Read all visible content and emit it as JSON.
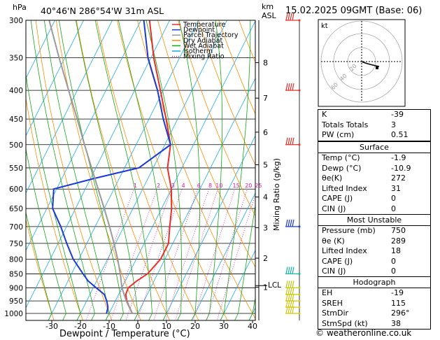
{
  "header": {
    "units_left": "hPa",
    "location": "40°46'N  286°54'W  31m  ASL",
    "units_km": "km",
    "units_asl": "ASL",
    "datetime": "15.02.2025  09GMT  (Base: 06)"
  },
  "chart_data": {
    "type": "skew-t log-p",
    "xlabel": "Dewpoint / Temperature (°C)",
    "ylabel_right": "Mixing Ratio (g/kg)",
    "pressure_ticks": [
      "300",
      "350",
      "400",
      "450",
      "500",
      "550",
      "600",
      "650",
      "700",
      "750",
      "800",
      "850",
      "900",
      "950",
      "1000"
    ],
    "pressure_values": [
      300,
      350,
      400,
      450,
      500,
      550,
      600,
      650,
      700,
      750,
      800,
      850,
      900,
      950,
      1000
    ],
    "temp_ticks": [
      "-30",
      "-20",
      "-10",
      "0",
      "10",
      "20",
      "30",
      "40"
    ],
    "temp_values": [
      -30,
      -20,
      -10,
      0,
      10,
      20,
      30,
      40
    ],
    "xlim": [
      -40,
      40
    ],
    "ylim": [
      1050,
      300
    ],
    "km_ticks": [
      {
        "label": "8",
        "p": 357
      },
      {
        "label": "7",
        "p": 413
      },
      {
        "label": "6",
        "p": 475
      },
      {
        "label": "5",
        "p": 543
      },
      {
        "label": "4",
        "p": 620
      },
      {
        "label": "3",
        "p": 703
      },
      {
        "label": "2",
        "p": 797
      },
      {
        "label": "1",
        "p": 898
      }
    ],
    "lcl": {
      "label": "LCL",
      "p": 892
    },
    "mixing_ratio_labels": [
      {
        "label": "1",
        "w": 1
      },
      {
        "label": "2",
        "w": 2
      },
      {
        "label": "3",
        "w": 3
      },
      {
        "label": "4",
        "w": 4
      },
      {
        "label": "6",
        "w": 6
      },
      {
        "label": "8",
        "w": 8
      },
      {
        "label": "10",
        "w": 10
      },
      {
        "label": "15",
        "w": 15
      },
      {
        "label": "20",
        "w": 20
      },
      {
        "label": "25",
        "w": 25
      }
    ],
    "legend": [
      {
        "name": "Temperature",
        "color": "#e8302a"
      },
      {
        "name": "Dewpoint",
        "color": "#1c39d8"
      },
      {
        "name": "Parcel Trajectory",
        "color": "#999999"
      },
      {
        "name": "Dry Adiabat",
        "color": "#ff8c00"
      },
      {
        "name": "Wet Adiabat",
        "color": "#13a813"
      },
      {
        "name": "Isotherm",
        "color": "#18a7e0"
      },
      {
        "name": "Mixing Ratio",
        "color": "#d51aa3"
      }
    ],
    "series": [
      {
        "name": "Temperature",
        "color": "#e8302a",
        "points": [
          [
            1000,
            -1.9
          ],
          [
            975,
            -4
          ],
          [
            950,
            -6
          ],
          [
            925,
            -7.5
          ],
          [
            900,
            -7.8
          ],
          [
            875,
            -6
          ],
          [
            850,
            -3.5
          ],
          [
            800,
            -1.5
          ],
          [
            750,
            -1.5
          ],
          [
            700,
            -4
          ],
          [
            650,
            -6.5
          ],
          [
            600,
            -10
          ],
          [
            550,
            -15
          ],
          [
            500,
            -18
          ],
          [
            450,
            -24
          ],
          [
            400,
            -31
          ],
          [
            350,
            -39
          ],
          [
            300,
            -47
          ]
        ]
      },
      {
        "name": "Dewpoint",
        "color": "#1c39d8",
        "points": [
          [
            1000,
            -10.9
          ],
          [
            975,
            -11.5
          ],
          [
            950,
            -13
          ],
          [
            925,
            -15
          ],
          [
            900,
            -19
          ],
          [
            875,
            -23
          ],
          [
            850,
            -26
          ],
          [
            800,
            -32
          ],
          [
            750,
            -37
          ],
          [
            700,
            -42
          ],
          [
            650,
            -48
          ],
          [
            600,
            -51
          ],
          [
            575,
            -39
          ],
          [
            550,
            -25
          ],
          [
            500,
            -18
          ],
          [
            450,
            -25
          ],
          [
            400,
            -32
          ],
          [
            350,
            -41
          ],
          [
            300,
            -49
          ]
        ]
      },
      {
        "name": "Parcel Trajectory",
        "color": "#999999",
        "points": [
          [
            1000,
            -1.9
          ],
          [
            950,
            -6.2
          ],
          [
            900,
            -10
          ],
          [
            850,
            -13
          ],
          [
            800,
            -16.5
          ],
          [
            750,
            -20.5
          ],
          [
            700,
            -25
          ],
          [
            650,
            -30
          ],
          [
            600,
            -35.5
          ],
          [
            550,
            -41.5
          ],
          [
            500,
            -48
          ],
          [
            450,
            -55
          ],
          [
            400,
            -63
          ],
          [
            350,
            -72
          ],
          [
            300,
            -82
          ]
        ]
      }
    ]
  },
  "hodograph": {
    "label": "kt",
    "ring_labels": [
      "20",
      "40",
      "60"
    ],
    "trace": [
      [
        0,
        0
      ],
      [
        5,
        -2
      ],
      [
        12,
        -4
      ],
      [
        20,
        -6
      ],
      [
        25,
        -7
      ]
    ],
    "storm_motion": [
      22,
      -9
    ]
  },
  "indices": {
    "rows": [
      {
        "k": "K",
        "v": "-39"
      },
      {
        "k": "Totals Totals",
        "v": "3"
      },
      {
        "k": "PW (cm)",
        "v": "0.51"
      }
    ]
  },
  "surface": {
    "title": "Surface",
    "rows": [
      {
        "k": "Temp (°C)",
        "v": "-1.9"
      },
      {
        "k": "Dewp (°C)",
        "v": "-10.9"
      },
      {
        "k": "θe(K)",
        "v": "272"
      },
      {
        "k": "Lifted Index",
        "v": "31"
      },
      {
        "k": "CAPE (J)",
        "v": "0"
      },
      {
        "k": "CIN (J)",
        "v": "0"
      }
    ]
  },
  "most_unstable": {
    "title": "Most Unstable",
    "rows": [
      {
        "k": "Pressure (mb)",
        "v": "750"
      },
      {
        "k": "θe (K)",
        "v": "289"
      },
      {
        "k": "Lifted Index",
        "v": "18"
      },
      {
        "k": "CAPE (J)",
        "v": "0"
      },
      {
        "k": "CIN (J)",
        "v": "0"
      }
    ]
  },
  "hodograph_stats": {
    "title": "Hodograph",
    "rows": [
      {
        "k": "EH",
        "v": "-19"
      },
      {
        "k": "SREH",
        "v": "115"
      },
      {
        "k": "StmDir",
        "v": "296°"
      },
      {
        "k": "StmSpd (kt)",
        "v": "38"
      }
    ]
  },
  "footer": "© weatheronline.co.uk",
  "wind_barbs": [
    {
      "p": 300,
      "color": "#e8302a",
      "dir": "flag"
    },
    {
      "p": 400,
      "color": "#e8302a",
      "dir": "barb"
    },
    {
      "p": 500,
      "color": "#e8302a",
      "dir": "barb"
    },
    {
      "p": 700,
      "color": "#1c39d8",
      "dir": "barb"
    },
    {
      "p": 850,
      "color": "#10b5a0",
      "dir": "barb"
    },
    {
      "p": 900,
      "color": "#b8c80d",
      "dir": "barb"
    },
    {
      "p": 925,
      "color": "#c8c80d",
      "dir": "barb"
    },
    {
      "p": 950,
      "color": "#d0c810",
      "dir": "barb"
    },
    {
      "p": 975,
      "color": "#d0c810",
      "dir": "barb"
    },
    {
      "p": 1000,
      "color": "#d0c810",
      "dir": "barb"
    }
  ]
}
